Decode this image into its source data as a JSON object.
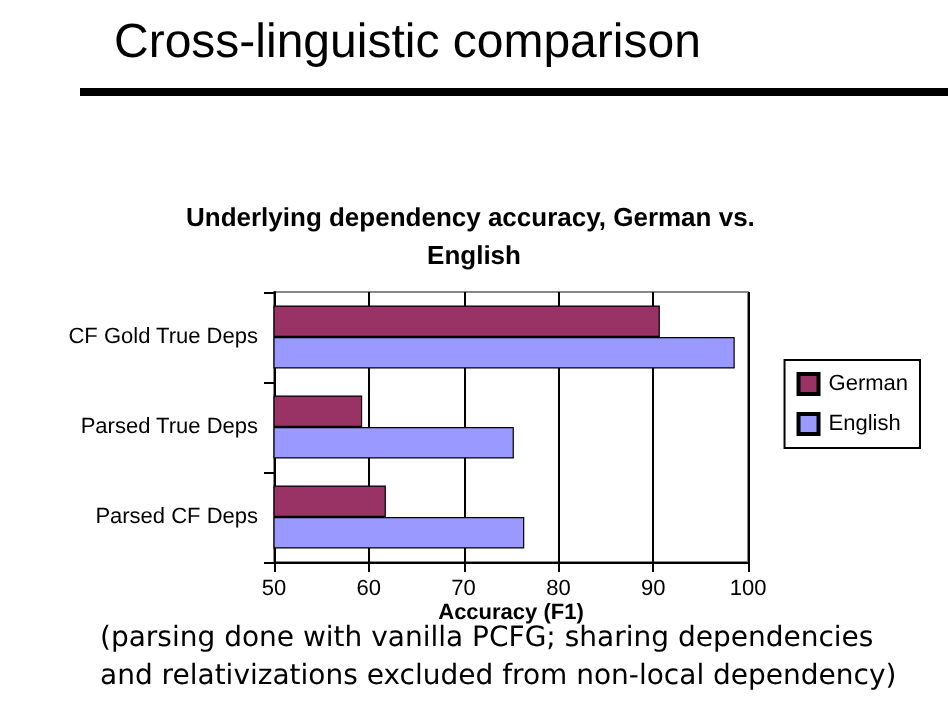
{
  "chart_data": {
    "type": "bar",
    "orientation": "horizontal",
    "title": "Cross-linguistic comparison",
    "subtitle": "Underlying dependency accuracy, German vs. English",
    "xlabel": "Accuracy (F1)",
    "categories": [
      "CF Gold True Deps",
      "Parsed True Deps",
      "Parsed CF Deps"
    ],
    "series": [
      {
        "name": "German",
        "color": "#993366",
        "values": [
          90.7,
          59.3,
          61.8
        ]
      },
      {
        "name": "English",
        "color": "#9999ff",
        "values": [
          98.6,
          75.3,
          76.4
        ]
      }
    ],
    "xlim": [
      50,
      100
    ],
    "xticks": [
      50,
      60,
      70,
      80,
      90,
      100
    ],
    "grid": "x",
    "legend": "right",
    "annotations": [
      "(parsing done with vanilla PCFG; sharing dependencies and relativizations excluded from non-local dependency)"
    ]
  }
}
